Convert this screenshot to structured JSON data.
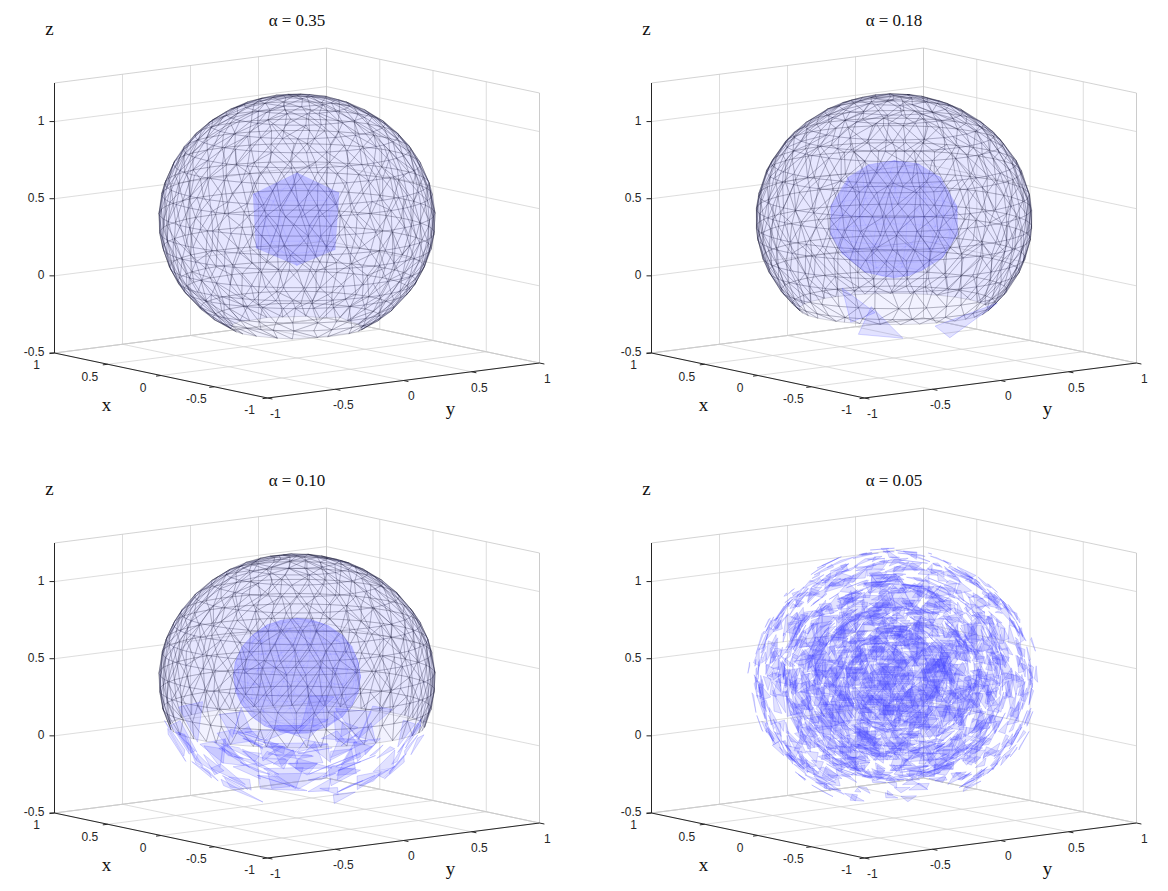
{
  "chart_data": [
    {
      "type": "mesh3d",
      "title": "α = 0.35",
      "alpha": 0.35,
      "x_label": "x",
      "y_label": "y",
      "z_label": "z",
      "xlim": [
        -1,
        1
      ],
      "ylim": [
        -1,
        1
      ],
      "zlim": [
        -0.5,
        1.25
      ],
      "xticks": [
        -1,
        -0.5,
        0,
        0.5,
        1
      ],
      "yticks": [
        -1,
        -0.5,
        0,
        0.5,
        1
      ],
      "zticks": [
        -0.5,
        0,
        0.5,
        1
      ],
      "grid": true,
      "color": "#4b4bff",
      "outer": {
        "center": [
          0,
          0,
          0.4
        ],
        "radius": 0.8,
        "zmin": -0.3
      },
      "inner": {
        "center": [
          0,
          0,
          0.4
        ],
        "radius": 0.3
      },
      "fragmented_below": -0.3
    },
    {
      "type": "mesh3d",
      "title": "α = 0.18",
      "alpha": 0.18,
      "x_label": "x",
      "y_label": "y",
      "z_label": "z",
      "xlim": [
        -1,
        1
      ],
      "ylim": [
        -1,
        1
      ],
      "zlim": [
        -0.5,
        1.25
      ],
      "xticks": [
        -1,
        -0.5,
        0,
        0.5,
        1
      ],
      "yticks": [
        -1,
        -0.5,
        0,
        0.5,
        1
      ],
      "zticks": [
        -0.5,
        0,
        0.5,
        1
      ],
      "grid": true,
      "color": "#4b4bff",
      "outer": {
        "center": [
          0,
          0,
          0.4
        ],
        "radius": 0.8,
        "zmin": -0.32
      },
      "inner": {
        "center": [
          0,
          0,
          0.4
        ],
        "radius": 0.38
      },
      "fragmented_below": -0.2
    },
    {
      "type": "mesh3d",
      "title": "α = 0.10",
      "alpha": 0.1,
      "x_label": "x",
      "y_label": "y",
      "z_label": "z",
      "xlim": [
        -1,
        1
      ],
      "ylim": [
        -1,
        1
      ],
      "zlim": [
        -0.5,
        1.25
      ],
      "xticks": [
        -1,
        -0.5,
        0,
        0.5,
        1
      ],
      "yticks": [
        -1,
        -0.5,
        0,
        0.5,
        1
      ],
      "zticks": [
        -0.5,
        0,
        0.5,
        1
      ],
      "grid": true,
      "color": "#4b4bff",
      "outer": {
        "center": [
          0,
          0,
          0.4
        ],
        "radius": 0.8,
        "zmin": -0.35
      },
      "inner": {
        "center": [
          0,
          0,
          0.42
        ],
        "radius": 0.37
      },
      "fragmented_below": 0.1
    },
    {
      "type": "mesh3d",
      "title": "α = 0.05",
      "alpha": 0.05,
      "x_label": "x",
      "y_label": "y",
      "z_label": "z",
      "xlim": [
        -1,
        1
      ],
      "ylim": [
        -1,
        1
      ],
      "zlim": [
        -0.5,
        1.25
      ],
      "xticks": [
        -1,
        -0.5,
        0,
        0.5,
        1
      ],
      "yticks": [
        -1,
        -0.5,
        0,
        0.5,
        1
      ],
      "zticks": [
        -0.5,
        0,
        0.5,
        1
      ],
      "grid": true,
      "color": "#4b4bff",
      "outer": {
        "center": [
          0,
          0,
          0.4
        ],
        "radius": 0.8,
        "zmin": -0.3
      },
      "fragmented_below": 1.2
    }
  ]
}
